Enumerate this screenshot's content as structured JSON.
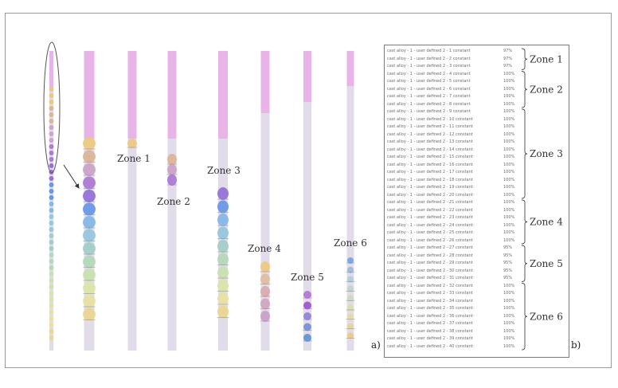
{
  "colors": {
    "cap": "#e8b4e8",
    "shaft": "#e2dcea",
    "ellipse": "#555555",
    "brace": "#444444"
  },
  "panel_labels": {
    "a": "a)",
    "b": "b)"
  },
  "zones": [
    "Zone 1",
    "Zone 2",
    "Zone 3",
    "Zone 4",
    "Zone 5",
    "Zone 6"
  ],
  "rows": [
    {
      "text": "cast alloy - 1 - user defined 2 - 1 constant",
      "pct": "97%",
      "zone": 1
    },
    {
      "text": "cast alloy - 1 - user defined 2 - 2 constant",
      "pct": "97%",
      "zone": 1
    },
    {
      "text": "cast alloy - 1 - user defined 2 - 3 constant",
      "pct": "97%",
      "zone": 1
    },
    {
      "text": "cast alloy - 1 - user defined 2 - 4 constant",
      "pct": "100%",
      "zone": 2
    },
    {
      "text": "cast alloy - 1 - user defined 2 - 5 constant",
      "pct": "100%",
      "zone": 2
    },
    {
      "text": "cast alloy - 1 - user defined 2 - 6 constant",
      "pct": "100%",
      "zone": 2
    },
    {
      "text": "cast alloy - 1 - user defined 2 - 7 constant",
      "pct": "100%",
      "zone": 2
    },
    {
      "text": "cast alloy - 1 - user defined 2 - 8 constant",
      "pct": "100%",
      "zone": 2
    },
    {
      "text": "cast alloy - 1 - user defined 2 - 9 constant",
      "pct": "100%",
      "zone": 3
    },
    {
      "text": "cast alloy - 1 - user defined 2 - 10 constant",
      "pct": "100%",
      "zone": 3
    },
    {
      "text": "cast alloy - 1 - user defined 2 - 11 constant",
      "pct": "100%",
      "zone": 3
    },
    {
      "text": "cast alloy - 1 - user defined 2 - 12 constant",
      "pct": "100%",
      "zone": 3
    },
    {
      "text": "cast alloy - 1 - user defined 2 - 13 constant",
      "pct": "100%",
      "zone": 3
    },
    {
      "text": "cast alloy - 1 - user defined 2 - 14 constant",
      "pct": "100%",
      "zone": 3
    },
    {
      "text": "cast alloy - 1 - user defined 2 - 15 constant",
      "pct": "100%",
      "zone": 3
    },
    {
      "text": "cast alloy - 1 - user defined 2 - 16 constant",
      "pct": "100%",
      "zone": 3
    },
    {
      "text": "cast alloy - 1 - user defined 2 - 17 constant",
      "pct": "100%",
      "zone": 3
    },
    {
      "text": "cast alloy - 1 - user defined 2 - 18 constant",
      "pct": "100%",
      "zone": 3
    },
    {
      "text": "cast alloy - 1 - user defined 2 - 19 constant",
      "pct": "100%",
      "zone": 3
    },
    {
      "text": "cast alloy - 1 - user defined 2 - 20 constant",
      "pct": "100%",
      "zone": 3
    },
    {
      "text": "cast alloy - 1 - user defined 2 - 21 constant",
      "pct": "100%",
      "zone": 4
    },
    {
      "text": "cast alloy - 1 - user defined 2 - 22 constant",
      "pct": "100%",
      "zone": 4
    },
    {
      "text": "cast alloy - 1 - user defined 2 - 23 constant",
      "pct": "100%",
      "zone": 4
    },
    {
      "text": "cast alloy - 1 - user defined 2 - 24 constant",
      "pct": "100%",
      "zone": 4
    },
    {
      "text": "cast alloy - 1 - user defined 2 - 25 constant",
      "pct": "100%",
      "zone": 4
    },
    {
      "text": "cast alloy - 1 - user defined 2 - 26 constant",
      "pct": "100%",
      "zone": 4
    },
    {
      "text": "cast alloy - 1 - user defined 2 - 27 constant",
      "pct": "95%",
      "zone": 5
    },
    {
      "text": "cast alloy - 1 - user defined 2 - 28 constant",
      "pct": "95%",
      "zone": 5
    },
    {
      "text": "cast alloy - 1 - user defined 2 - 29 constant",
      "pct": "95%",
      "zone": 5
    },
    {
      "text": "cast alloy - 1 - user defined 2 - 30 constant",
      "pct": "95%",
      "zone": 5
    },
    {
      "text": "cast alloy - 1 - user defined 2 - 31 constant",
      "pct": "95%",
      "zone": 5
    },
    {
      "text": "cast alloy - 1 - user defined 2 - 32 constant",
      "pct": "100%",
      "zone": 6
    },
    {
      "text": "cast alloy - 1 - user defined 2 - 33 constant",
      "pct": "100%",
      "zone": 6
    },
    {
      "text": "cast alloy - 1 - user defined 2 - 34 constant",
      "pct": "100%",
      "zone": 6
    },
    {
      "text": "cast alloy - 1 - user defined 2 - 35 constant",
      "pct": "100%",
      "zone": 6
    },
    {
      "text": "cast alloy - 1 - user defined 2 - 36 constant",
      "pct": "100%",
      "zone": 6
    },
    {
      "text": "cast alloy - 1 - user defined 2 - 37 constant",
      "pct": "100%",
      "zone": 6
    },
    {
      "text": "cast alloy - 1 - user defined 2 - 38 constant",
      "pct": "100%",
      "zone": 6
    },
    {
      "text": "cast alloy - 1 - user defined 2 - 39 constant",
      "pct": "100%",
      "zone": 6
    },
    {
      "text": "cast alloy - 1 - user defined 2 - 40 constant",
      "pct": "100%",
      "zone": 6
    }
  ],
  "bead_palette": {
    "full": [
      "#ecc874",
      "#dcb08e",
      "#c99ec6",
      "#a770d3",
      "#8c66d8",
      "#5a90e8",
      "#7cb4e6",
      "#8ec4dc",
      "#9cccc4",
      "#aed8b4",
      "#c6e2a8",
      "#d8e6a0",
      "#e8e29a",
      "#ecd686"
    ],
    "zone1": [
      "#ecc874"
    ],
    "zone2": [
      "#dcb08e",
      "#c99ec6",
      "#a770d3"
    ],
    "zone3": [
      "#8c66d8",
      "#5a90e8",
      "#7cb4e6",
      "#8ec4dc",
      "#9cccc4",
      "#aed8b4",
      "#c6e2a8",
      "#d8e6a0",
      "#e8e29a",
      "#ecd686"
    ],
    "zone4": [
      "#ecc874",
      "#e2b898",
      "#d8a6a8",
      "#cfa0b8",
      "#c89ac6"
    ],
    "zone5": [
      "#b06ad8",
      "#9848d4",
      "#8a7ad8",
      "#6a8ae0",
      "#4c8ed6"
    ],
    "zone6": [
      "#6aa0e0",
      "#90b8dc",
      "#a8cadc",
      "#b8d6c8",
      "#c8dcb4",
      "#d6e0a4",
      "#e2dc9c",
      "#e8d48c",
      "#ecc874"
    ]
  }
}
